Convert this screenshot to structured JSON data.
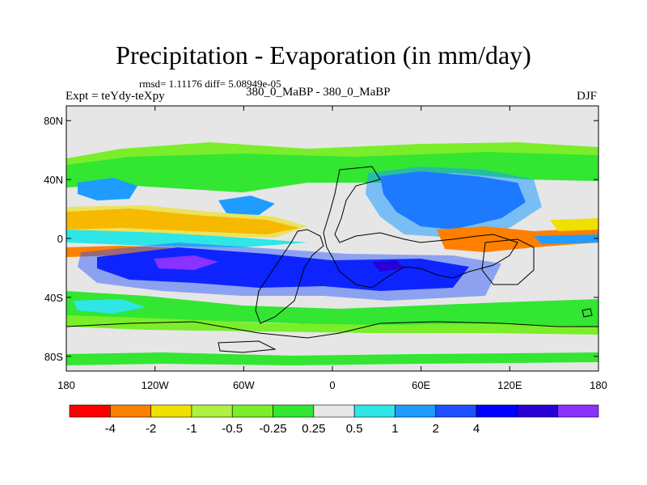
{
  "figure": {
    "title": "Precipitation - Evaporation (in mm/day)",
    "stats": "rmsd= 1.11176 diff= 5.08949e-05",
    "experiment": "Expt = teYdy-teXpy",
    "case": "380_0_MaBP - 380_0_MaBP",
    "season": "DJF"
  },
  "axes": {
    "y_ticks": [
      {
        "lat": 80,
        "label": "80N"
      },
      {
        "lat": 40,
        "label": "40N"
      },
      {
        "lat": 0,
        "label": "0"
      },
      {
        "lat": -40,
        "label": "40S"
      },
      {
        "lat": -80,
        "label": "80S"
      }
    ],
    "x_ticks": [
      {
        "lon": -180,
        "label": "180"
      },
      {
        "lon": -120,
        "label": "120W"
      },
      {
        "lon": -60,
        "label": "60W"
      },
      {
        "lon": 0,
        "label": "0"
      },
      {
        "lon": 60,
        "label": "60E"
      },
      {
        "lon": 120,
        "label": "120E"
      },
      {
        "lon": 180,
        "label": "180"
      }
    ],
    "lon_range": [
      -180,
      180
    ],
    "lat_range": [
      -90,
      90
    ]
  },
  "colorbar": {
    "colors": [
      "#ff0000",
      "#ff7f00",
      "#f0e000",
      "#b0f040",
      "#7aee2a",
      "#32e632",
      "#e6e6e6",
      "#2ee6e6",
      "#1e9cff",
      "#1e50ff",
      "#0000ff",
      "#2800d6",
      "#8a32ff"
    ],
    "labels": [
      "-4",
      "-2",
      "-1",
      "-0.5",
      "-0.25",
      "0.25",
      "0.5",
      "1",
      "2",
      "4"
    ]
  }
}
